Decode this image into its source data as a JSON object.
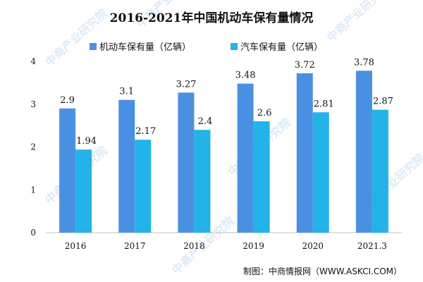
{
  "source": {
    "text": "制图：中商情报网（WWW.ASKCI.COM）",
    "watermark": "中商产业研究院"
  },
  "colors": {
    "series1": "#4a90e2",
    "series2": "#23b3e8",
    "axis": "#bfbfbf",
    "text": "#111111"
  },
  "chart_data": {
    "type": "bar",
    "title": "2016-2021年中国机动车保有量情况",
    "xlabel": "",
    "ylabel": "",
    "categories": [
      "2016",
      "2017",
      "2018",
      "2019",
      "2020",
      "2021.3"
    ],
    "ylim": [
      0,
      4
    ],
    "yticks": [
      0,
      1,
      2,
      3,
      4
    ],
    "grid": false,
    "legend_position": "top-center",
    "series": [
      {
        "name": "机动车保有量（亿辆）",
        "values": [
          2.9,
          3.1,
          3.27,
          3.48,
          3.72,
          3.78
        ],
        "labels": [
          "2.9",
          "3.1",
          "3.27",
          "3.48",
          "3.72",
          "3.78"
        ],
        "color": "#4a90e2"
      },
      {
        "name": "汽车保有量（亿辆）",
        "values": [
          1.94,
          2.17,
          2.4,
          2.6,
          2.81,
          2.87
        ],
        "labels": [
          "1.94",
          "2.17",
          "2.4",
          "2.6",
          "2.81",
          "2.87"
        ],
        "color": "#23b3e8"
      }
    ]
  }
}
